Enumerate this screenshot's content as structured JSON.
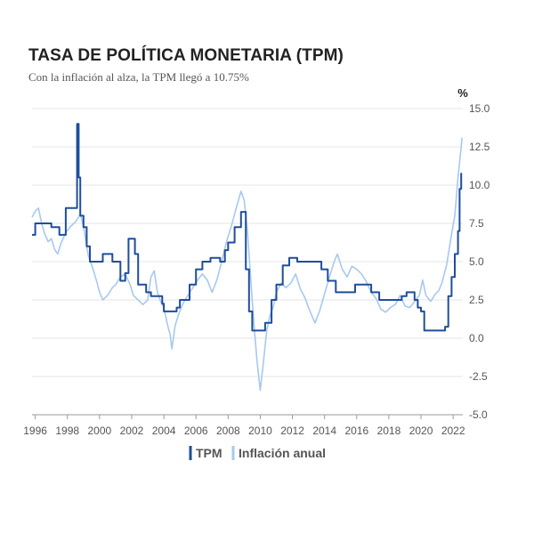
{
  "chart_data": {
    "type": "line",
    "title": "TASA DE POLÍTICA MONETARIA (TPM)",
    "subtitle": "Con la inflación al alza, la TPM llegó a 10.75%",
    "ylabel": "%",
    "xlabel": "",
    "xlim": [
      1995.8,
      2022.6
    ],
    "ylim": [
      -5.0,
      15.0
    ],
    "x_ticks": [
      1996,
      1998,
      2000,
      2002,
      2004,
      2006,
      2008,
      2010,
      2012,
      2014,
      2016,
      2018,
      2020,
      2022
    ],
    "y_ticks": [
      -5.0,
      -2.5,
      0.0,
      2.5,
      5.0,
      7.5,
      10.0,
      12.5,
      15.0
    ],
    "y_tick_labels": [
      "-5.0",
      "-2.5",
      "0.0",
      "2.5",
      "5.0",
      "7.5",
      "10.0",
      "12.5",
      "15.0"
    ],
    "grid": "horizontal",
    "legend_position": "bottom",
    "series": [
      {
        "name": "TPM",
        "color": "#1f4e9b",
        "step": true,
        "points": [
          [
            1995.8,
            6.75
          ],
          [
            1996.0,
            7.5
          ],
          [
            1997.0,
            7.25
          ],
          [
            1997.5,
            6.75
          ],
          [
            1997.9,
            8.5
          ],
          [
            1998.6,
            14.0
          ],
          [
            1998.7,
            10.5
          ],
          [
            1998.8,
            8.0
          ],
          [
            1999.0,
            7.25
          ],
          [
            1999.2,
            6.0
          ],
          [
            1999.4,
            5.0
          ],
          [
            2000.0,
            5.0
          ],
          [
            2000.2,
            5.5
          ],
          [
            2000.8,
            5.0
          ],
          [
            2001.3,
            3.75
          ],
          [
            2001.6,
            4.25
          ],
          [
            2001.8,
            6.5
          ],
          [
            2002.2,
            5.5
          ],
          [
            2002.4,
            3.5
          ],
          [
            2002.9,
            3.0
          ],
          [
            2003.2,
            2.75
          ],
          [
            2003.9,
            2.25
          ],
          [
            2004.0,
            1.75
          ],
          [
            2004.8,
            2.0
          ],
          [
            2005.0,
            2.5
          ],
          [
            2005.6,
            3.5
          ],
          [
            2006.0,
            4.5
          ],
          [
            2006.4,
            5.0
          ],
          [
            2006.9,
            5.25
          ],
          [
            2007.5,
            5.0
          ],
          [
            2007.8,
            5.75
          ],
          [
            2008.0,
            6.25
          ],
          [
            2008.4,
            7.25
          ],
          [
            2008.8,
            8.25
          ],
          [
            2009.1,
            4.5
          ],
          [
            2009.3,
            1.75
          ],
          [
            2009.5,
            0.5
          ],
          [
            2010.3,
            1.0
          ],
          [
            2010.7,
            2.5
          ],
          [
            2011.0,
            3.5
          ],
          [
            2011.4,
            4.75
          ],
          [
            2011.8,
            5.25
          ],
          [
            2012.3,
            5.0
          ],
          [
            2013.8,
            4.5
          ],
          [
            2014.2,
            3.75
          ],
          [
            2014.7,
            3.0
          ],
          [
            2015.9,
            3.5
          ],
          [
            2016.9,
            3.0
          ],
          [
            2017.4,
            2.5
          ],
          [
            2018.8,
            2.75
          ],
          [
            2019.1,
            3.0
          ],
          [
            2019.6,
            2.5
          ],
          [
            2019.8,
            2.0
          ],
          [
            2020.0,
            1.75
          ],
          [
            2020.2,
            0.5
          ],
          [
            2021.5,
            0.75
          ],
          [
            2021.7,
            2.75
          ],
          [
            2021.9,
            4.0
          ],
          [
            2022.1,
            5.5
          ],
          [
            2022.3,
            7.0
          ],
          [
            2022.4,
            9.75
          ],
          [
            2022.5,
            10.75
          ],
          [
            2022.55,
            10.75
          ]
        ]
      },
      {
        "name": "Inflación anual",
        "color": "#a8c8f0",
        "step": false,
        "points": [
          [
            1995.8,
            7.9
          ],
          [
            1996.0,
            8.3
          ],
          [
            1996.2,
            8.5
          ],
          [
            1996.4,
            7.5
          ],
          [
            1996.6,
            6.8
          ],
          [
            1996.8,
            6.3
          ],
          [
            1997.0,
            6.5
          ],
          [
            1997.2,
            5.8
          ],
          [
            1997.4,
            5.5
          ],
          [
            1997.6,
            6.2
          ],
          [
            1997.9,
            6.9
          ],
          [
            1998.2,
            7.3
          ],
          [
            1998.5,
            7.6
          ],
          [
            1998.8,
            8.1
          ],
          [
            1999.0,
            7.3
          ],
          [
            1999.3,
            5.4
          ],
          [
            1999.6,
            4.5
          ],
          [
            1999.8,
            3.8
          ],
          [
            2000.0,
            3.0
          ],
          [
            2000.2,
            2.5
          ],
          [
            2000.5,
            2.8
          ],
          [
            2000.8,
            3.3
          ],
          [
            2001.0,
            3.5
          ],
          [
            2001.3,
            4.0
          ],
          [
            2001.6,
            4.2
          ],
          [
            2001.9,
            3.5
          ],
          [
            2002.1,
            2.8
          ],
          [
            2002.4,
            2.5
          ],
          [
            2002.7,
            2.2
          ],
          [
            2003.0,
            2.5
          ],
          [
            2003.2,
            4.0
          ],
          [
            2003.4,
            4.4
          ],
          [
            2003.6,
            3.0
          ],
          [
            2003.8,
            2.4
          ],
          [
            2004.0,
            2.0
          ],
          [
            2004.2,
            1.0
          ],
          [
            2004.4,
            0.2
          ],
          [
            2004.5,
            -0.7
          ],
          [
            2004.7,
            0.8
          ],
          [
            2004.9,
            1.5
          ],
          [
            2005.2,
            2.3
          ],
          [
            2005.5,
            2.8
          ],
          [
            2005.8,
            3.3
          ],
          [
            2006.1,
            3.8
          ],
          [
            2006.4,
            4.2
          ],
          [
            2006.7,
            3.8
          ],
          [
            2007.0,
            3.0
          ],
          [
            2007.3,
            3.8
          ],
          [
            2007.6,
            5.0
          ],
          [
            2007.9,
            6.3
          ],
          [
            2008.2,
            7.3
          ],
          [
            2008.5,
            8.5
          ],
          [
            2008.8,
            9.6
          ],
          [
            2009.0,
            9.0
          ],
          [
            2009.2,
            7.0
          ],
          [
            2009.4,
            4.0
          ],
          [
            2009.6,
            1.0
          ],
          [
            2009.8,
            -1.5
          ],
          [
            2010.0,
            -3.4
          ],
          [
            2010.2,
            -1.5
          ],
          [
            2010.4,
            0.5
          ],
          [
            2010.6,
            1.5
          ],
          [
            2010.8,
            2.0
          ],
          [
            2011.0,
            3.0
          ],
          [
            2011.3,
            3.6
          ],
          [
            2011.6,
            3.3
          ],
          [
            2011.9,
            3.6
          ],
          [
            2012.2,
            4.2
          ],
          [
            2012.5,
            3.2
          ],
          [
            2012.8,
            2.6
          ],
          [
            2013.0,
            2.0
          ],
          [
            2013.2,
            1.5
          ],
          [
            2013.4,
            1.0
          ],
          [
            2013.7,
            1.8
          ],
          [
            2014.0,
            2.9
          ],
          [
            2014.3,
            4.0
          ],
          [
            2014.6,
            5.0
          ],
          [
            2014.8,
            5.5
          ],
          [
            2015.1,
            4.5
          ],
          [
            2015.4,
            4.0
          ],
          [
            2015.7,
            4.7
          ],
          [
            2016.0,
            4.5
          ],
          [
            2016.3,
            4.2
          ],
          [
            2016.6,
            3.7
          ],
          [
            2016.9,
            3.0
          ],
          [
            2017.2,
            2.6
          ],
          [
            2017.5,
            1.9
          ],
          [
            2017.8,
            1.7
          ],
          [
            2018.1,
            2.0
          ],
          [
            2018.4,
            2.2
          ],
          [
            2018.7,
            2.8
          ],
          [
            2019.0,
            2.1
          ],
          [
            2019.3,
            2.0
          ],
          [
            2019.6,
            2.4
          ],
          [
            2019.9,
            2.8
          ],
          [
            2020.1,
            3.8
          ],
          [
            2020.3,
            2.8
          ],
          [
            2020.6,
            2.4
          ],
          [
            2020.9,
            2.9
          ],
          [
            2021.1,
            3.1
          ],
          [
            2021.3,
            3.6
          ],
          [
            2021.6,
            4.8
          ],
          [
            2021.9,
            6.8
          ],
          [
            2022.1,
            8.0
          ],
          [
            2022.3,
            10.5
          ],
          [
            2022.5,
            12.5
          ],
          [
            2022.55,
            13.1
          ]
        ]
      }
    ]
  }
}
